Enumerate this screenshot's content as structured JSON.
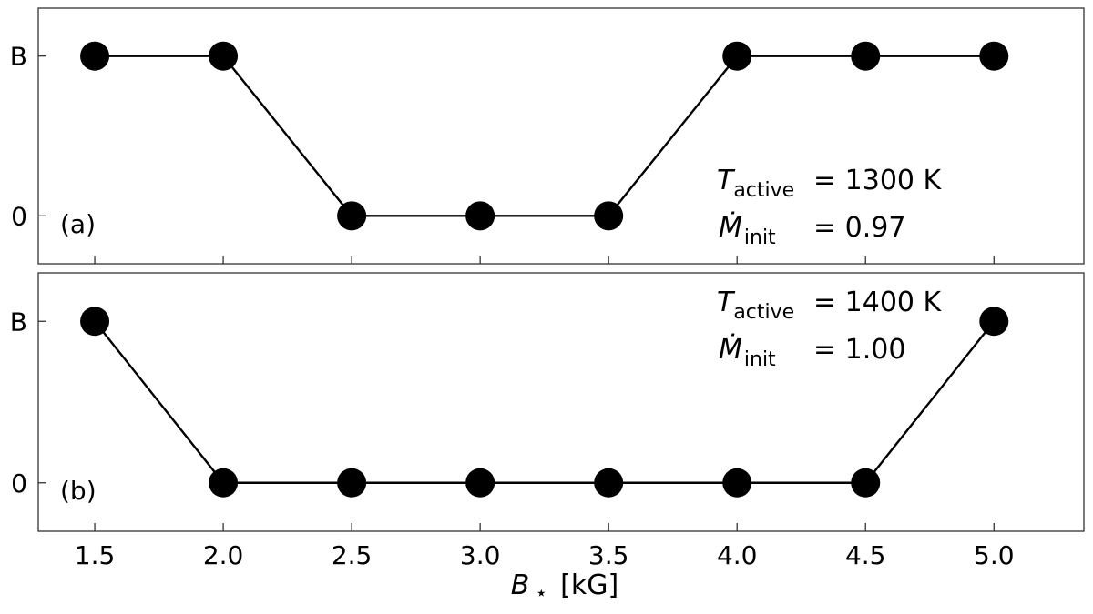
{
  "chart_data": [
    {
      "type": "line",
      "panel_label": "(a)",
      "x": [
        1.5,
        2.0,
        2.5,
        3.0,
        3.5,
        4.0,
        4.5,
        5.0
      ],
      "y": [
        1,
        1,
        0,
        0,
        0,
        1,
        1,
        1
      ],
      "ytick_values": [
        0,
        1
      ],
      "yticks": [
        "0",
        "B"
      ],
      "xlim": [
        1.28,
        5.35
      ],
      "ylim": [
        -0.3,
        1.3
      ],
      "annotation": {
        "t_symbol": "T",
        "t_subscript": "active",
        "t_value": "= 1300 K",
        "m_symbol": "Ṁ",
        "m_subscript": "init",
        "m_value": "= 0.97"
      }
    },
    {
      "type": "line",
      "panel_label": "(b)",
      "x": [
        1.5,
        2.0,
        2.5,
        3.0,
        3.5,
        4.0,
        4.5,
        5.0
      ],
      "y": [
        1,
        0,
        0,
        0,
        0,
        0,
        0,
        1
      ],
      "ytick_values": [
        0,
        1
      ],
      "yticks": [
        "0",
        "B"
      ],
      "xlim": [
        1.28,
        5.35
      ],
      "ylim": [
        -0.3,
        1.3
      ],
      "annotation": {
        "t_symbol": "T",
        "t_subscript": "active",
        "t_value": "= 1400 K",
        "m_symbol": "Ṁ",
        "m_subscript": "init",
        "m_value": "= 1.00"
      }
    }
  ],
  "xticks": [
    "1.5",
    "2.0",
    "2.5",
    "3.0",
    "3.5",
    "4.0",
    "4.5",
    "5.0"
  ],
  "xtick_values": [
    1.5,
    2.0,
    2.5,
    3.0,
    3.5,
    4.0,
    4.5,
    5.0
  ],
  "xlabel": {
    "symbol": "B",
    "subscript": "⋆",
    "unit": "[kG]"
  }
}
